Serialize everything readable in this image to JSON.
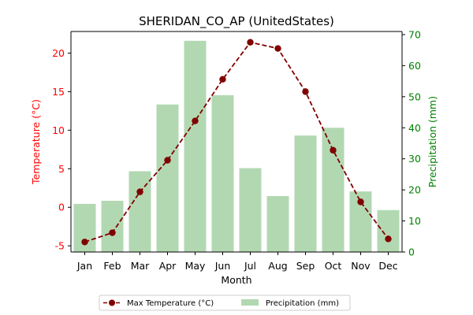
{
  "chart_data": {
    "type": "bar+line",
    "title": "SHERIDAN_CO_AP (UnitedStates)",
    "xlabel": "Month",
    "categories": [
      "Jan",
      "Feb",
      "Mar",
      "Apr",
      "May",
      "Jun",
      "Jul",
      "Aug",
      "Sep",
      "Oct",
      "Nov",
      "Dec"
    ],
    "left_axis": {
      "label": "Temperature (°C)",
      "color": "#ff0000",
      "ylim": [
        -5.8,
        22.8
      ],
      "ticks": [
        -5,
        0,
        5,
        10,
        15,
        20
      ]
    },
    "right_axis": {
      "label": "Precipitation (mm)",
      "color": "#008000",
      "ylim": [
        0,
        71
      ],
      "ticks": [
        0,
        10,
        20,
        30,
        40,
        50,
        60,
        70
      ]
    },
    "series": [
      {
        "name": "Max Temperature (°C)",
        "type": "line",
        "axis": "left",
        "color": "#800000",
        "line_style": "dashed",
        "marker": "circle",
        "values": [
          -4.5,
          -3.3,
          2.0,
          6.1,
          11.2,
          16.6,
          21.4,
          20.6,
          15.0,
          7.4,
          0.7,
          -4.1
        ]
      },
      {
        "name": "Precipitation (mm)",
        "type": "bar",
        "axis": "right",
        "color": "#b2d8b2",
        "values": [
          15.5,
          16.5,
          26.0,
          47.5,
          68.0,
          50.5,
          27.0,
          18.0,
          37.5,
          40.0,
          19.5,
          13.5
        ]
      }
    ],
    "legend": {
      "placement": "bottom-center",
      "entries": [
        "Max Temperature (°C)",
        "Precipitation (mm)"
      ]
    },
    "grid": false
  }
}
